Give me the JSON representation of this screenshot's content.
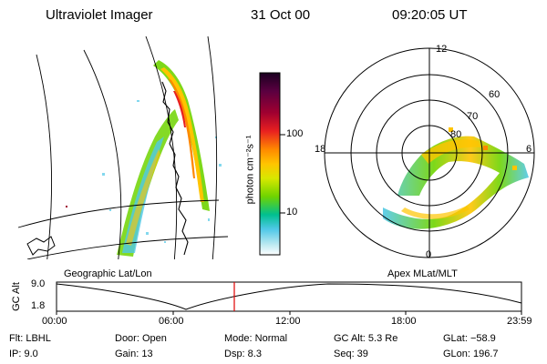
{
  "header": {
    "instrument": "Ultraviolet Imager",
    "date": "31 Oct 00",
    "time": "09:20:05 UT"
  },
  "colorbar": {
    "unit_label": "photon cm⁻²s⁻¹",
    "ticks": [
      "100",
      "10"
    ],
    "colors": [
      "#1a0020",
      "#5a0040",
      "#a00030",
      "#e82020",
      "#ff8800",
      "#ffc400",
      "#d8e800",
      "#6fd400",
      "#00c090",
      "#50c8e8",
      "#b8e8f0",
      "#ffffff"
    ]
  },
  "left_panel": {
    "label": "Geographic Lat/Lon"
  },
  "right_panel": {
    "label": "Apex MLat/MLT",
    "mlt_labels": {
      "top": "12",
      "left": "18",
      "right": "6",
      "bottom": "0"
    },
    "lat_labels": [
      "60",
      "70",
      "80"
    ]
  },
  "timeline": {
    "axis_label": "GC Alt",
    "y_ticks": [
      "9.0",
      "1.8"
    ],
    "x_ticks": [
      "00:00",
      "06:00",
      "12:00",
      "18:00",
      "23:59"
    ],
    "current_time_marker_color": "#e00000"
  },
  "info": {
    "flt": "Flt: LBHL",
    "ip": "IP: 9.0",
    "door": "Door: Open",
    "gain": "Gain: 13",
    "mode": "Mode: Normal",
    "dsp": "Dsp:    8.3",
    "gcalt": "GC Alt: 5.3 Re",
    "seq": "Seq: 39",
    "glat": "GLat: −58.9",
    "glon": "GLon: 196.7"
  }
}
